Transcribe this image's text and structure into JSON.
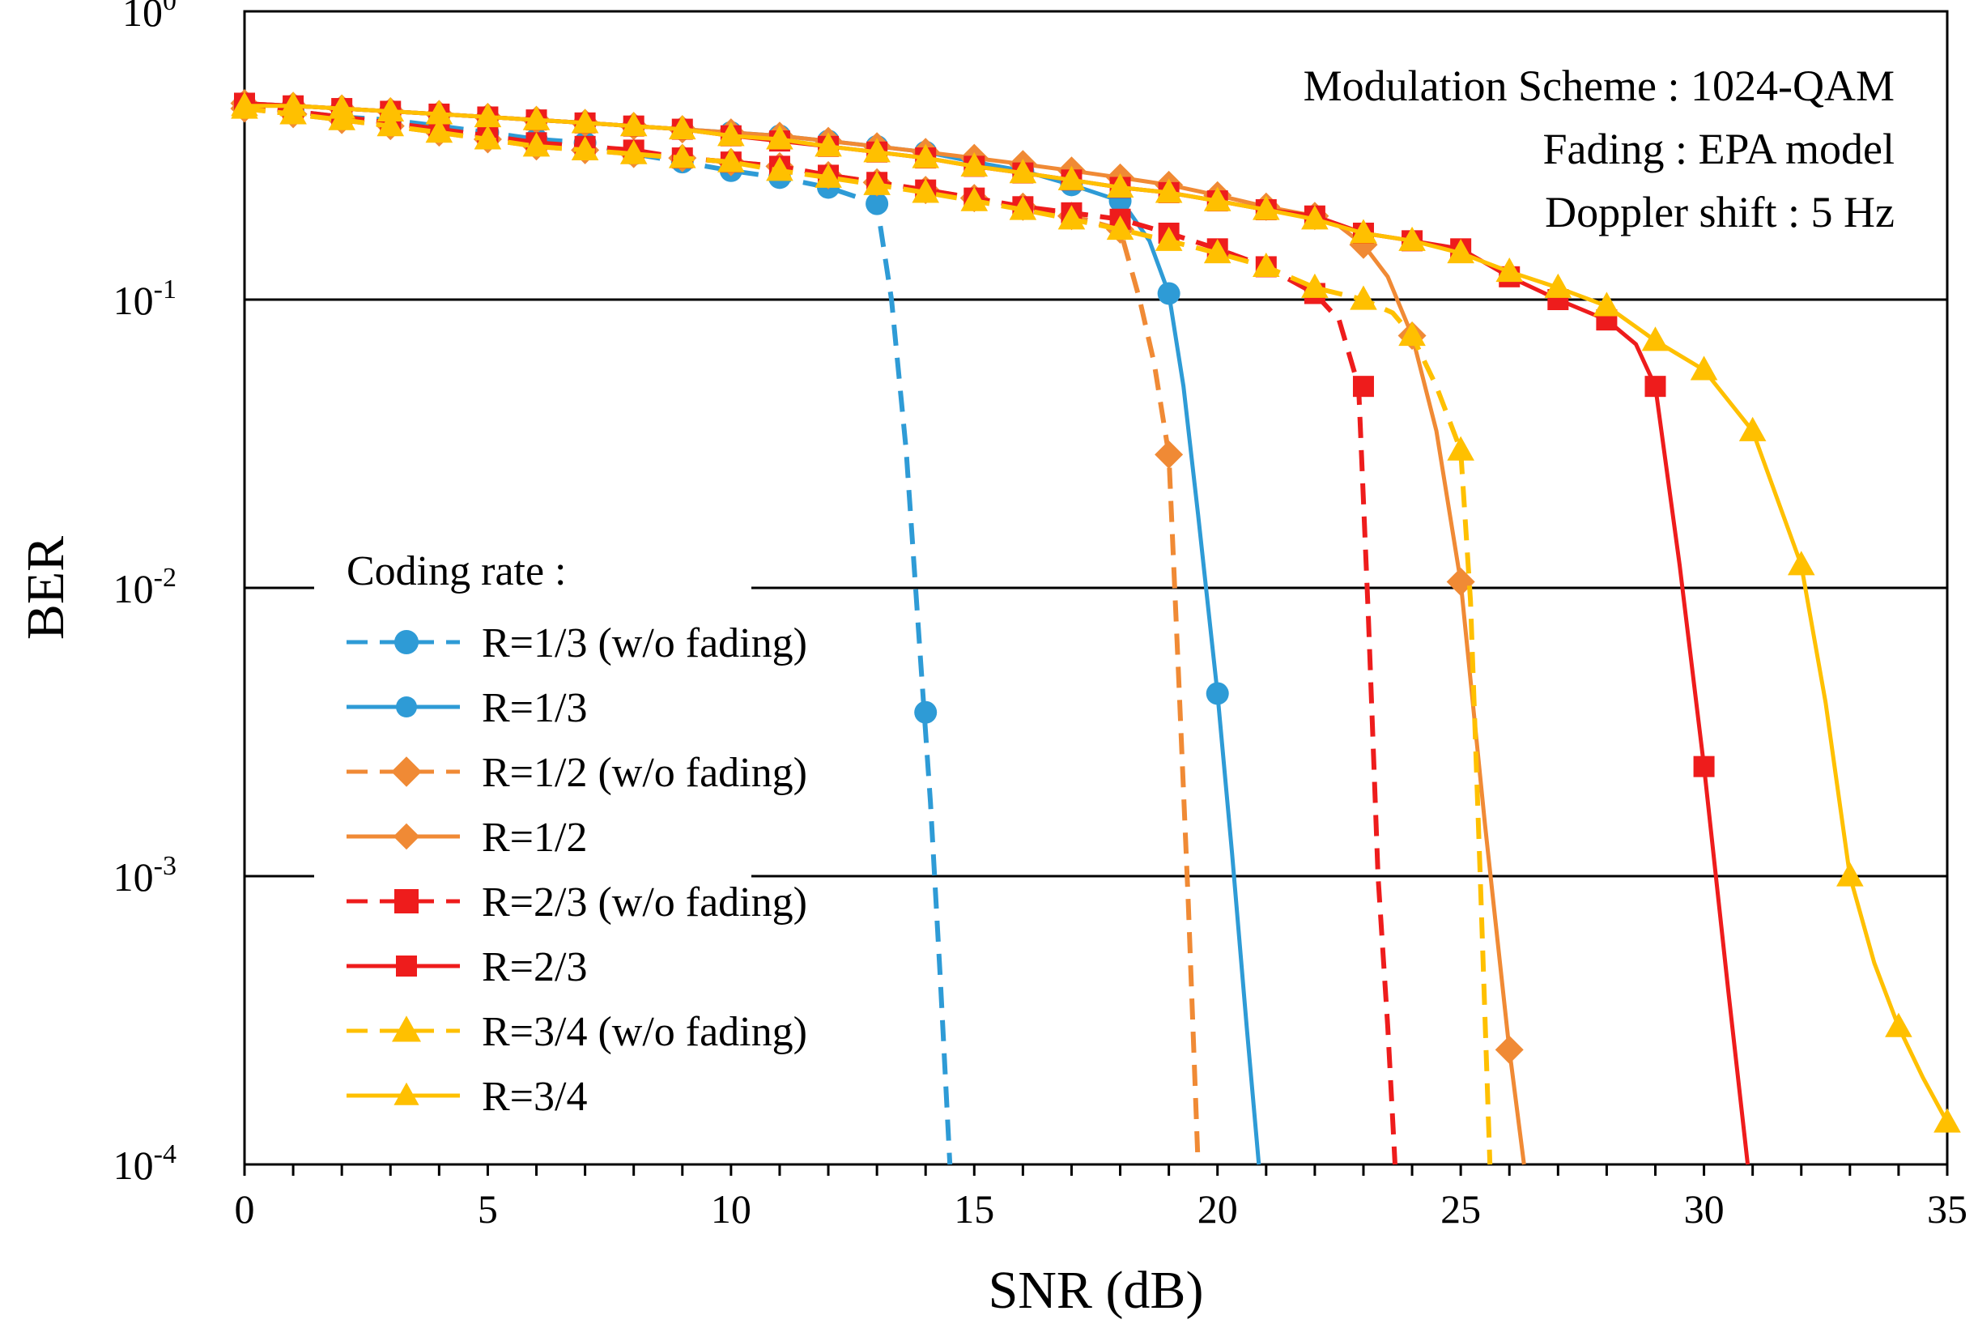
{
  "chart_data": {
    "type": "line",
    "xlabel": "SNR (dB)",
    "ylabel": "BER",
    "yscale": "log",
    "xlim": [
      0,
      35
    ],
    "ylim": [
      0.0001,
      1
    ],
    "x_ticks": [
      "0",
      "5",
      "10",
      "15",
      "20",
      "25",
      "30",
      "35"
    ],
    "y_ticks": [
      {
        "value": 1,
        "base": "10",
        "exp": "0"
      },
      {
        "value": 0.1,
        "base": "10",
        "exp": "-1"
      },
      {
        "value": 0.01,
        "base": "10",
        "exp": "-2"
      },
      {
        "value": 0.001,
        "base": "10",
        "exp": "-3"
      },
      {
        "value": 0.0001,
        "base": "10",
        "exp": "-4"
      }
    ],
    "horizontal_gridlines_at": [
      0.1,
      0.01,
      0.001
    ],
    "annotations": [
      "Modulation Scheme : 1024-QAM",
      "Fading : EPA model",
      "Doppler shift : 5 Hz"
    ],
    "legend_title": "Coding rate :",
    "series": [
      {
        "name": "R=1/3 (w/o fading)",
        "color": "#2e9bd6",
        "dash": true,
        "marker": "circle",
        "x": [
          0,
          1,
          2,
          3,
          4,
          5,
          6,
          7,
          8,
          9,
          10,
          11,
          12,
          13,
          14
        ],
        "y": [
          0.47,
          0.45,
          0.43,
          0.42,
          0.4,
          0.38,
          0.36,
          0.35,
          0.32,
          0.3,
          0.28,
          0.265,
          0.245,
          0.215,
          0.0037
        ],
        "curve_x": [
          13.3,
          13.6,
          13.9,
          14.1,
          14.3,
          14.5
        ],
        "curve_y": [
          0.1,
          0.03,
          0.0055,
          0.0018,
          0.00045,
          0.0001
        ]
      },
      {
        "name": "R=1/3",
        "color": "#2e9bd6",
        "dash": false,
        "marker": "circle",
        "x": [
          0,
          1,
          2,
          3,
          4,
          5,
          6,
          7,
          8,
          9,
          10,
          11,
          12,
          13,
          14,
          15,
          16,
          17,
          18,
          19,
          20
        ],
        "y": [
          0.48,
          0.47,
          0.46,
          0.45,
          0.44,
          0.43,
          0.42,
          0.41,
          0.4,
          0.39,
          0.38,
          0.37,
          0.355,
          0.34,
          0.325,
          0.3,
          0.28,
          0.25,
          0.22,
          0.105,
          0.0043
        ],
        "curve_x": [
          18.2,
          18.6,
          19.0,
          19.3,
          19.6,
          20.0,
          20.3,
          20.6,
          20.85
        ],
        "curve_y": [
          0.2,
          0.16,
          0.105,
          0.05,
          0.018,
          0.0043,
          0.0012,
          0.0003,
          0.0001
        ]
      },
      {
        "name": "R=1/2 (w/o fading)",
        "color": "#f08a35",
        "dash": true,
        "marker": "diamond",
        "x": [
          0,
          1,
          2,
          3,
          4,
          5,
          6,
          7,
          8,
          9,
          10,
          11,
          12,
          13,
          14,
          15,
          16,
          17,
          18,
          19
        ],
        "y": [
          0.46,
          0.44,
          0.42,
          0.4,
          0.38,
          0.36,
          0.34,
          0.33,
          0.32,
          0.31,
          0.3,
          0.29,
          0.27,
          0.255,
          0.24,
          0.225,
          0.21,
          0.195,
          0.175,
          0.029
        ],
        "curve_x": [
          18.0,
          18.4,
          18.7,
          19.0,
          19.2,
          19.4,
          19.6
        ],
        "curve_y": [
          0.17,
          0.1,
          0.06,
          0.029,
          0.005,
          0.0008,
          0.0001
        ]
      },
      {
        "name": "R=1/2",
        "color": "#f08a35",
        "dash": false,
        "marker": "diamond",
        "x": [
          0,
          1,
          2,
          3,
          4,
          5,
          6,
          7,
          8,
          9,
          10,
          11,
          12,
          13,
          14,
          15,
          16,
          17,
          18,
          19,
          20,
          21,
          22,
          23,
          24,
          25,
          26
        ],
        "y": [
          0.48,
          0.47,
          0.46,
          0.45,
          0.44,
          0.43,
          0.42,
          0.41,
          0.4,
          0.39,
          0.38,
          0.37,
          0.355,
          0.34,
          0.325,
          0.31,
          0.295,
          0.28,
          0.265,
          0.25,
          0.23,
          0.21,
          0.195,
          0.155,
          0.075,
          0.0105,
          0.00025
        ],
        "curve_x": [
          22.0,
          22.5,
          23.0,
          23.5,
          24.0,
          24.5,
          25.0,
          25.5,
          26.0,
          26.3
        ],
        "curve_y": [
          0.195,
          0.18,
          0.155,
          0.12,
          0.075,
          0.035,
          0.0105,
          0.0015,
          0.00025,
          0.0001
        ]
      },
      {
        "name": "R=2/3 (w/o fading)",
        "color": "#ee1c1c",
        "dash": true,
        "marker": "square",
        "x": [
          0,
          1,
          2,
          3,
          4,
          5,
          6,
          7,
          8,
          9,
          10,
          11,
          12,
          13,
          14,
          15,
          16,
          17,
          18,
          19,
          20,
          21,
          22,
          23
        ],
        "y": [
          0.47,
          0.45,
          0.43,
          0.41,
          0.39,
          0.37,
          0.35,
          0.34,
          0.33,
          0.31,
          0.3,
          0.29,
          0.27,
          0.255,
          0.24,
          0.225,
          0.21,
          0.2,
          0.19,
          0.17,
          0.15,
          0.13,
          0.105,
          0.05
        ],
        "curve_x": [
          22.0,
          22.5,
          22.9,
          23.1,
          23.3,
          23.5,
          23.65
        ],
        "curve_y": [
          0.105,
          0.085,
          0.05,
          0.008,
          0.001,
          0.0003,
          0.0001
        ]
      },
      {
        "name": "R=2/3",
        "color": "#ee1c1c",
        "dash": false,
        "marker": "square",
        "x": [
          0,
          1,
          2,
          3,
          4,
          5,
          6,
          7,
          8,
          9,
          10,
          11,
          12,
          13,
          14,
          15,
          16,
          17,
          18,
          19,
          20,
          21,
          22,
          23,
          24,
          25,
          26,
          27,
          28,
          29,
          30
        ],
        "y": [
          0.48,
          0.47,
          0.46,
          0.45,
          0.44,
          0.43,
          0.42,
          0.41,
          0.4,
          0.39,
          0.37,
          0.355,
          0.34,
          0.325,
          0.31,
          0.29,
          0.275,
          0.26,
          0.245,
          0.235,
          0.22,
          0.205,
          0.195,
          0.17,
          0.16,
          0.15,
          0.12,
          0.1,
          0.085,
          0.05,
          0.0024
        ],
        "curve_x": [
          27.0,
          28.0,
          28.6,
          29.0,
          29.5,
          30.0,
          30.5,
          30.9
        ],
        "curve_y": [
          0.1,
          0.085,
          0.07,
          0.05,
          0.012,
          0.0024,
          0.0004,
          0.0001
        ]
      },
      {
        "name": "R=3/4 (w/o fading)",
        "color": "#ffc000",
        "dash": true,
        "marker": "triangle",
        "x": [
          0,
          1,
          2,
          3,
          4,
          5,
          6,
          7,
          8,
          9,
          10,
          11,
          12,
          13,
          14,
          15,
          16,
          17,
          18,
          19,
          20,
          21,
          22,
          23,
          24,
          25
        ],
        "y": [
          0.46,
          0.44,
          0.42,
          0.4,
          0.38,
          0.36,
          0.34,
          0.33,
          0.32,
          0.31,
          0.3,
          0.28,
          0.265,
          0.25,
          0.235,
          0.22,
          0.205,
          0.19,
          0.175,
          0.16,
          0.145,
          0.13,
          0.11,
          0.1,
          0.075,
          0.03
        ],
        "curve_x": [
          23.0,
          23.6,
          24.0,
          24.5,
          25.0,
          25.2,
          25.4,
          25.6
        ],
        "curve_y": [
          0.1,
          0.09,
          0.075,
          0.05,
          0.03,
          0.009,
          0.001,
          0.0001
        ]
      },
      {
        "name": "R=3/4",
        "color": "#ffc000",
        "dash": false,
        "marker": "triangle",
        "x": [
          0,
          1,
          2,
          3,
          4,
          5,
          6,
          7,
          8,
          9,
          10,
          11,
          12,
          13,
          14,
          15,
          16,
          17,
          18,
          19,
          20,
          21,
          22,
          23,
          24,
          25,
          26,
          27,
          28,
          29,
          30,
          31,
          32,
          33,
          34,
          35
        ],
        "y": [
          0.47,
          0.47,
          0.46,
          0.45,
          0.44,
          0.43,
          0.42,
          0.41,
          0.4,
          0.39,
          0.37,
          0.36,
          0.34,
          0.325,
          0.31,
          0.29,
          0.275,
          0.26,
          0.245,
          0.235,
          0.22,
          0.205,
          0.19,
          0.17,
          0.16,
          0.145,
          0.125,
          0.11,
          0.095,
          0.072,
          0.057,
          0.035,
          0.012,
          0.001,
          0.0003,
          0.00014
        ],
        "curve_x": [
          26.0,
          27.0,
          28.0,
          29.0,
          30.0,
          31.0,
          32.0,
          32.5,
          33.0,
          33.5,
          34.0,
          34.5,
          35.0
        ],
        "curve_y": [
          0.125,
          0.11,
          0.095,
          0.072,
          0.057,
          0.035,
          0.012,
          0.004,
          0.001,
          0.0005,
          0.0003,
          0.0002,
          0.00014
        ]
      }
    ]
  }
}
